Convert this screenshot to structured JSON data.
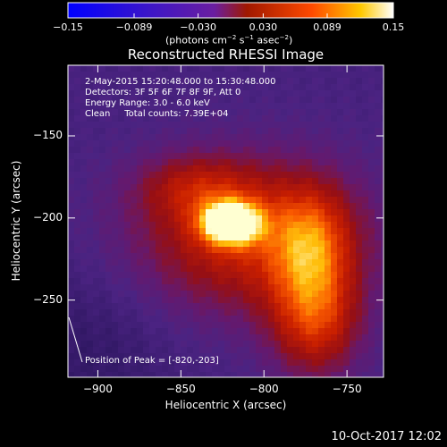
{
  "chart_data": {
    "type": "heatmap",
    "title": "Reconstructed RHESSI Image",
    "xlabel": "Heliocentric X (arcsec)",
    "ylabel": "Heliocentric Y (arcsec)",
    "xlim": [
      -918,
      -728
    ],
    "ylim": [
      -297,
      -107
    ],
    "x_ticks": [
      -900,
      -850,
      -800,
      -750
    ],
    "y_ticks": [
      -150,
      -200,
      -250
    ],
    "colorbar": {
      "label": "(photons cm⁻² s⁻¹ asec⁻²)",
      "range": [
        -0.15,
        0.15
      ],
      "ticks": [
        "-0.15",
        "-0.089",
        "-0.030",
        "0.030",
        "0.089",
        "0.15"
      ]
    },
    "peak": {
      "x": -820,
      "y": -203
    },
    "annotations": [
      "2-May-2015 15:20:48.000 to 15:30:48.000",
      "Detectors: 3F 5F 6F 7F 8F 9F, Att 0",
      "Energy Range: 3.0 - 6.0 keV",
      "Clean     Total counts: 7.39E+04"
    ],
    "peak_label": "Position of Peak = [-820,-203]",
    "timestamp": "10-Oct-2017 12:02"
  }
}
